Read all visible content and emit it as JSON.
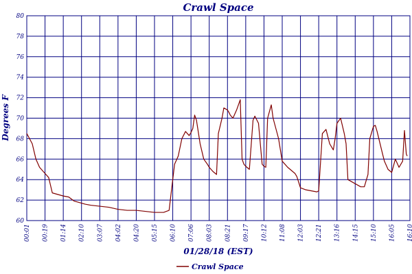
{
  "chart_data": {
    "type": "line",
    "title": "Crawl Space",
    "xlabel": "01/28/18 (EST)",
    "ylabel": "Degrees F",
    "ylim": [
      60,
      80
    ],
    "yticks": [
      60,
      62,
      64,
      66,
      68,
      70,
      72,
      74,
      76,
      78,
      80
    ],
    "x_tick_labels": [
      "00:01",
      "00:19",
      "01:14",
      "02:10",
      "03:07",
      "04:02",
      "04:20",
      "05:15",
      "06:10",
      "07:06",
      "08:03",
      "08:21",
      "09:17",
      "10:12",
      "11:08",
      "12:03",
      "12:21",
      "13:16",
      "14:15",
      "15:10",
      "16:05",
      "16:10"
    ],
    "grid": true,
    "legend": {
      "position": "bottom-center",
      "entries": [
        "Crawl Space"
      ]
    },
    "colors": {
      "line": "#800000",
      "grid": "#000080",
      "text": "#000080"
    },
    "series": [
      {
        "name": "Crawl Space",
        "x": [
          0,
          0.15,
          0.3,
          0.5,
          0.7,
          0.85,
          1.0,
          1.2,
          1.4,
          1.6,
          1.8,
          2.0,
          2.3,
          2.6,
          2.8,
          3.0,
          3.2,
          3.5,
          4.0,
          4.5,
          5.0,
          5.5,
          6.0,
          6.5,
          7.0,
          7.5,
          7.8,
          7.9,
          8.1,
          8.3,
          8.5,
          8.7,
          8.9,
          9.0,
          9.1,
          9.2,
          9.3,
          9.5,
          9.7,
          9.9,
          10.0,
          10.1,
          10.2,
          10.4,
          10.5,
          10.7,
          10.8,
          11.0,
          11.1,
          11.15,
          11.3,
          11.5,
          11.7,
          11.8,
          11.9,
          12.0,
          12.2,
          12.4,
          12.5,
          12.7,
          12.9,
          13.0,
          13.1,
          13.2,
          13.4,
          13.5,
          13.8,
          14.0,
          14.3,
          14.5,
          14.7,
          14.8,
          15.0,
          15.3,
          15.6,
          15.9,
          16.0,
          16.2,
          16.4,
          16.6,
          16.8,
          16.9,
          17.0,
          17.2,
          17.4,
          17.5,
          17.6,
          17.8,
          18.0,
          18.3,
          18.5,
          18.7,
          18.8,
          19.0,
          19.1,
          19.2,
          19.5,
          19.6,
          19.8,
          20.0,
          20.2,
          20.4,
          20.6,
          20.7,
          20.8,
          20.85
        ],
        "y": [
          68.5,
          68.0,
          67.5,
          66.0,
          65.2,
          64.9,
          64.6,
          64.2,
          62.7,
          62.6,
          62.5,
          62.4,
          62.3,
          61.9,
          61.8,
          61.7,
          61.6,
          61.5,
          61.4,
          61.3,
          61.1,
          61.0,
          61.0,
          60.9,
          60.8,
          60.8,
          61.0,
          62.5,
          65.5,
          66.3,
          68.0,
          68.7,
          68.3,
          68.6,
          69.0,
          70.3,
          69.8,
          67.5,
          66.0,
          65.5,
          65.2,
          65.0,
          64.8,
          64.5,
          68.5,
          70.0,
          71.0,
          70.8,
          70.5,
          70.3,
          70.0,
          70.8,
          71.8,
          66.0,
          65.5,
          65.3,
          65.0,
          69.8,
          70.2,
          69.5,
          65.5,
          65.3,
          65.2,
          70.0,
          71.3,
          70.0,
          68.0,
          65.8,
          65.2,
          64.9,
          64.6,
          64.3,
          63.2,
          63.0,
          62.9,
          62.8,
          62.9,
          68.5,
          68.9,
          67.5,
          66.9,
          68.0,
          69.5,
          70.0,
          68.5,
          67.5,
          64.0,
          63.8,
          63.6,
          63.3,
          63.3,
          64.5,
          68.0,
          69.2,
          69.3,
          68.7,
          66.5,
          65.8,
          65.0,
          64.7,
          66.0,
          65.2,
          65.8,
          68.8,
          66.5,
          66.3
        ]
      }
    ]
  }
}
